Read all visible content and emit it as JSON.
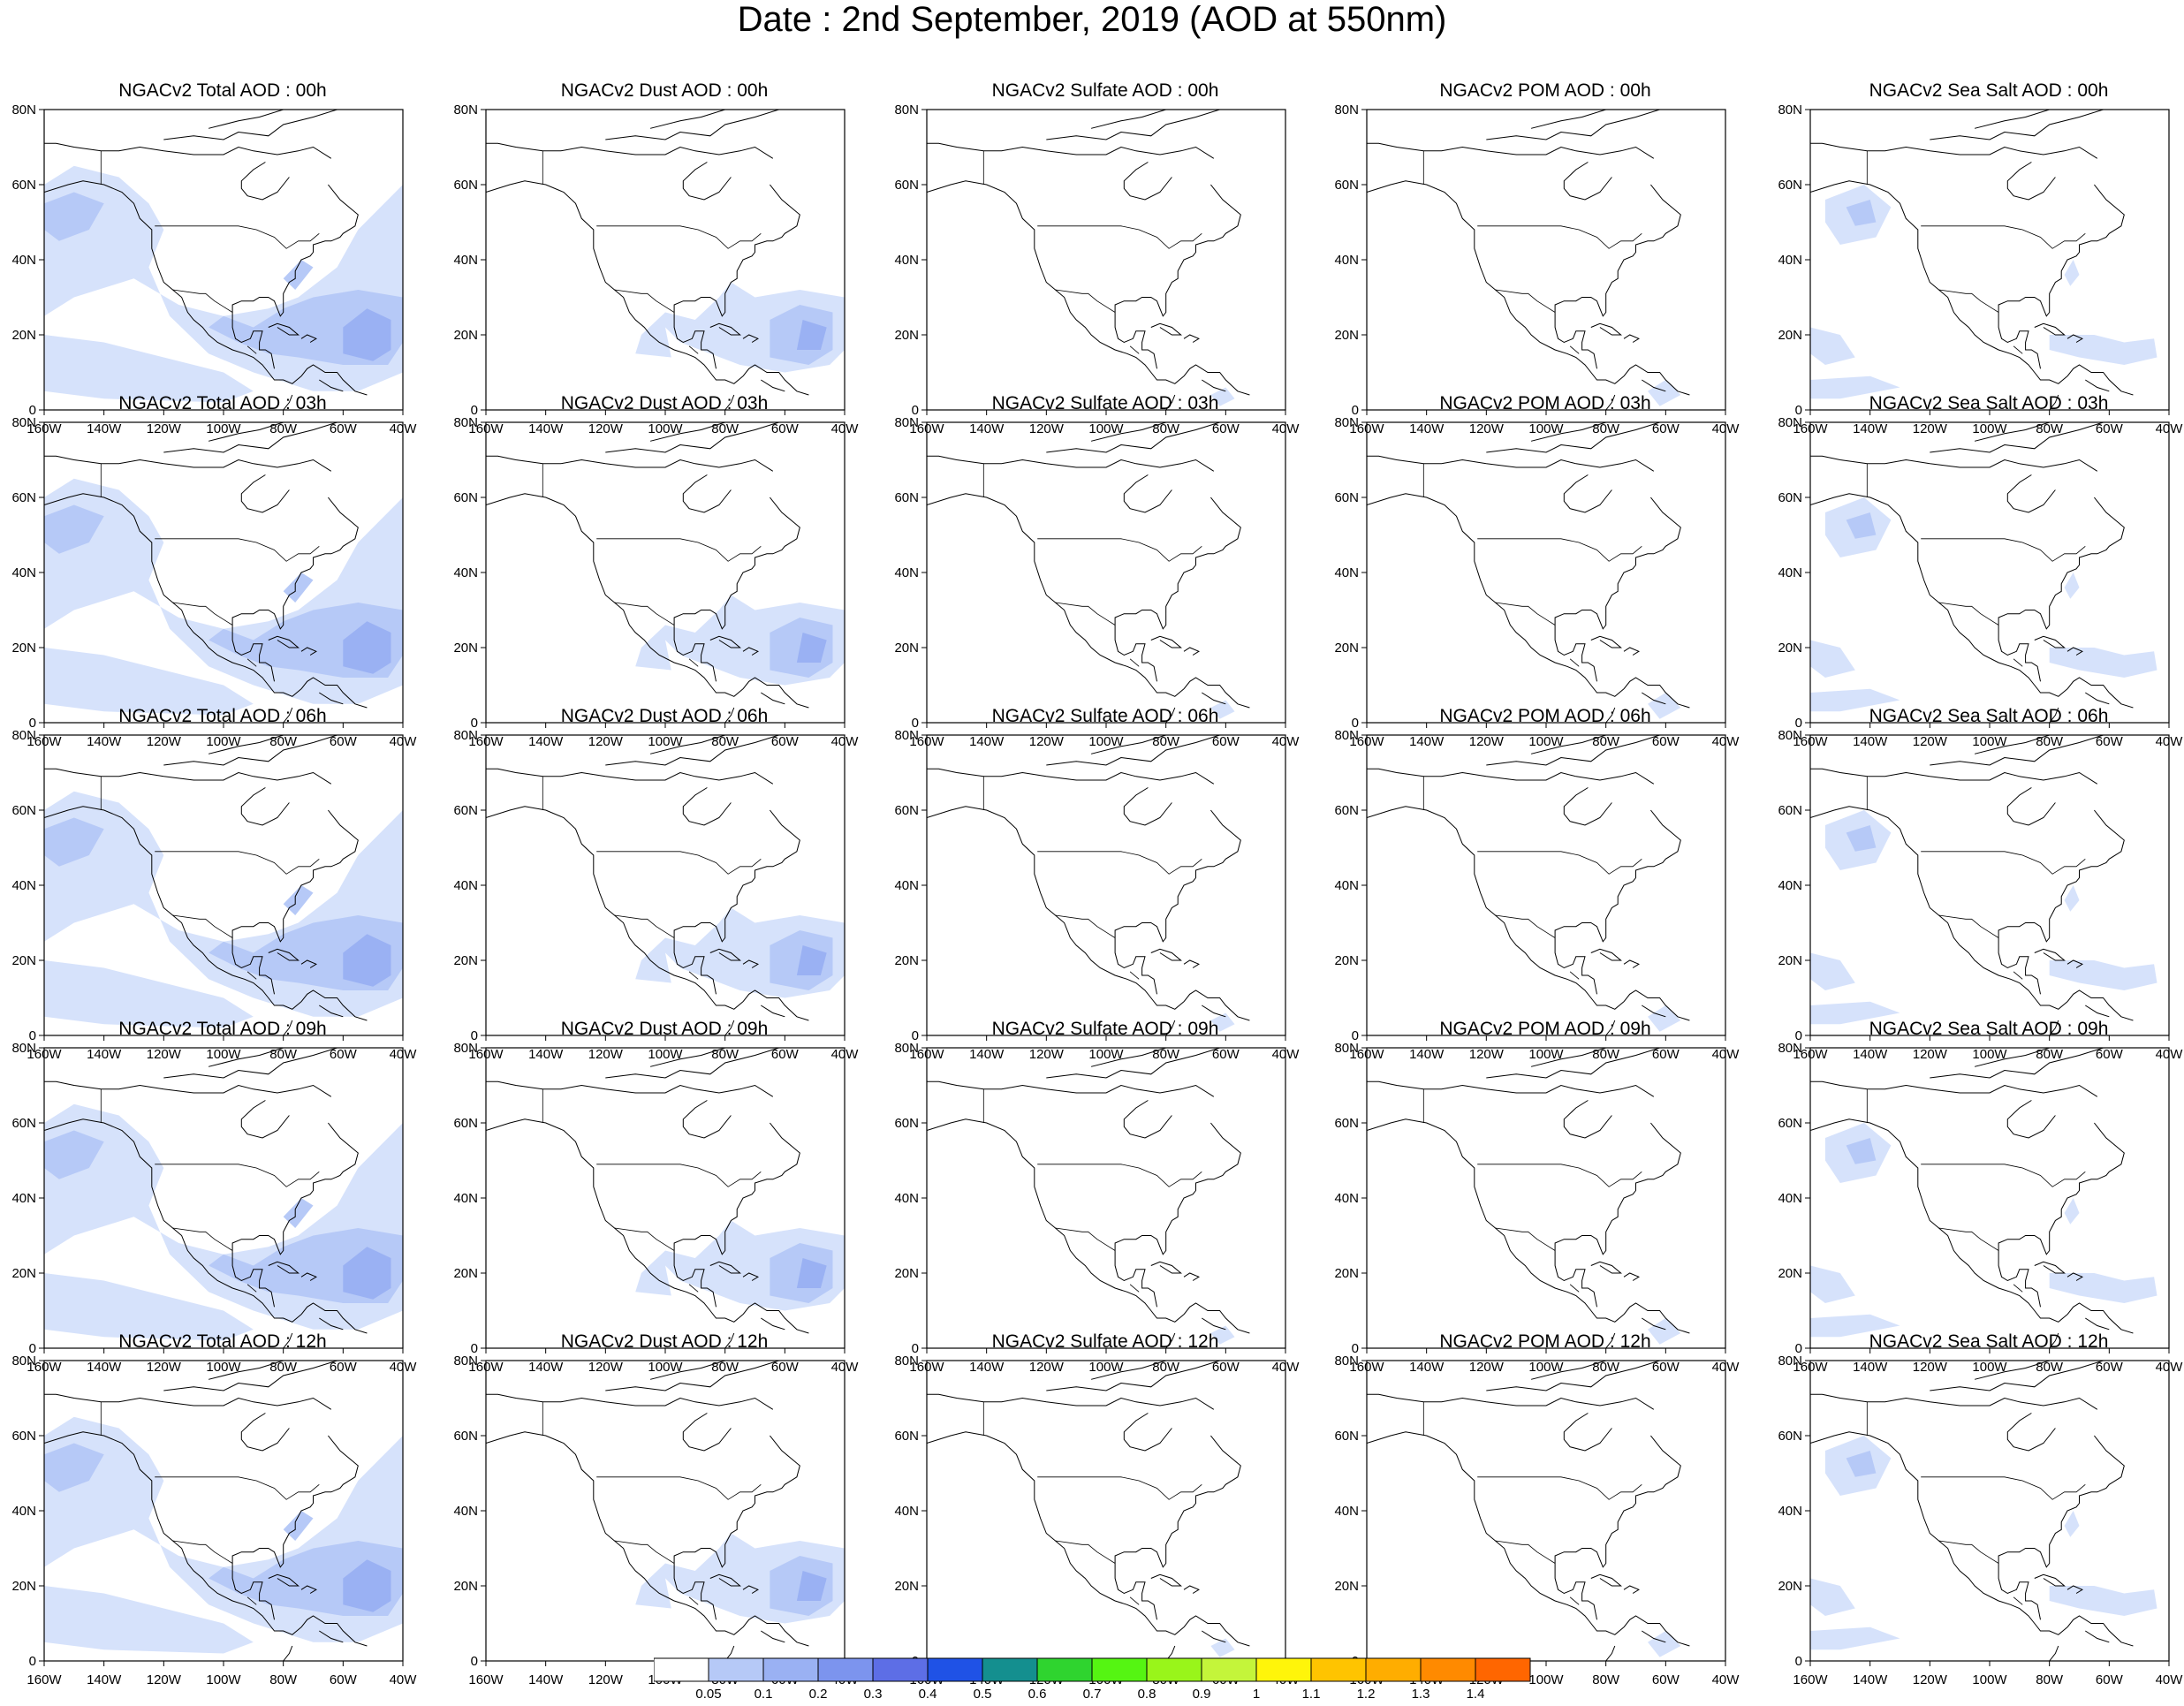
{
  "title": "Date : 2nd September, 2019 (AOD at 550nm)",
  "x_ticks": [
    "160W",
    "140W",
    "120W",
    "100W",
    "80W",
    "60W",
    "40W"
  ],
  "y_ticks": [
    "80N",
    "60N",
    "40N",
    "20N",
    "0"
  ],
  "columns": [
    {
      "species": "total",
      "titles": [
        "NGACv2 Total AOD : 00h",
        "NGACv2 Total AOD : 03h",
        "NGACv2 Total AOD : 06h",
        "NGACv2 Total AOD : 09h",
        "NGACv2 Total AOD  : 12h"
      ]
    },
    {
      "species": "dust",
      "titles": [
        "NGACv2 Dust AOD : 00h",
        "NGACv2 Dust AOD : 03h",
        "NGACv2 Dust AOD : 06h",
        "NGACv2 Dust AOD : 09h",
        "NGACv2 Dust AOD : 12h"
      ]
    },
    {
      "species": "sulfate",
      "titles": [
        "NGACv2 Sulfate AOD : 00h",
        "NGACv2 Sulfate AOD : 03h",
        "NGACv2 Sulfate AOD : 06h",
        "NGACv2 Sulfate AOD : 09h",
        "NGACv2 Sulfate AOD : 12h"
      ]
    },
    {
      "species": "pom",
      "titles": [
        "NGACv2 POM AOD : 00h",
        "NGACv2 POM AOD : 03h",
        "NGACv2 POM AOD : 06h",
        "NGACv2 POM AOD : 09h",
        "NGACv2 POM  AOD : 12h"
      ]
    },
    {
      "species": "seasalt",
      "titles": [
        "NGACv2 Sea Salt AOD : 00h",
        "NGACv2 Sea Salt AOD : 03h",
        "NGACv2 Sea Salt AOD : 06h",
        "NGACv2 Sea Salt  AOD : 09h",
        "NGACv2 Sea Salt  AOD : 12h"
      ]
    }
  ],
  "colorbar": {
    "labels": [
      "0.05",
      "0.1",
      "0.2",
      "0.3",
      "0.4",
      "0.5",
      "0.6",
      "0.7",
      "0.8",
      "0.9",
      "1",
      "1.1",
      "1.2",
      "1.3",
      "1.4"
    ],
    "colors": [
      "#ffffff",
      "#d6e2fb",
      "#b6c9f7",
      "#9ab1f3",
      "#7c94ee",
      "#5d6ee6",
      "#1f52e6",
      "#148f8f",
      "#2fd42f",
      "#55f512",
      "#99f51a",
      "#c4f53a",
      "#fff50a",
      "#ffc400",
      "#ffad00",
      "#ff8a00",
      "#ff6600",
      "#ff2a12"
    ]
  },
  "map_extent": {
    "lon": [
      -160,
      -40
    ],
    "lat": [
      0,
      80
    ]
  }
}
